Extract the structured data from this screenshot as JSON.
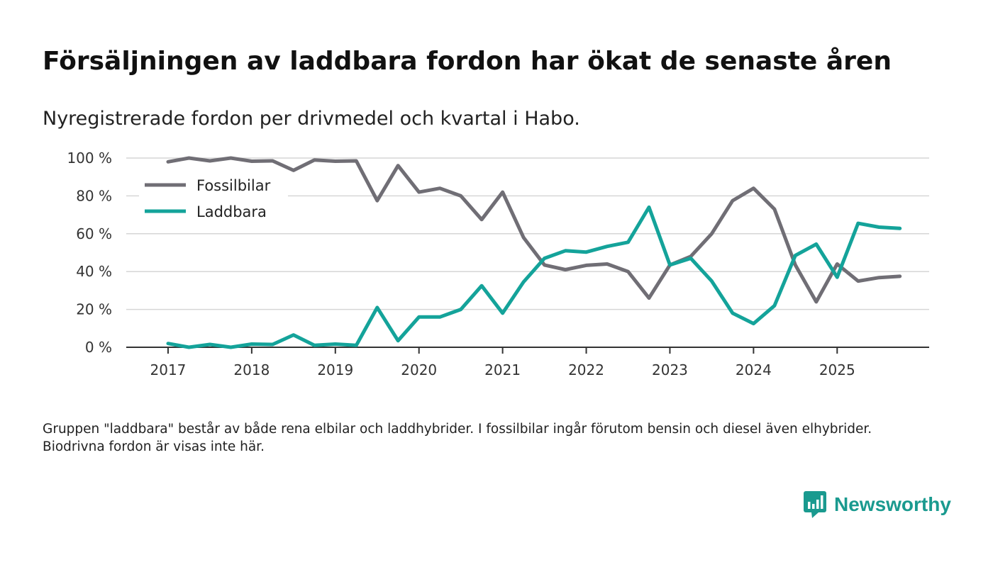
{
  "title": "Försäljningen av laddbara fordon har ökat de senaste åren",
  "subtitle": "Nyregistrerade fordon per drivmedel och kvartal i Habo.",
  "footnote": "Gruppen \"laddbara\" består av både rena elbilar och laddhybrider. I fossilbilar ingår förutom bensin och diesel även elhybrider. Biodrivna fordon är visas inte här.",
  "brand": "Newsworthy",
  "colors": {
    "fossil": "#706e75",
    "laddbara": "#14a39a",
    "grid": "#d6d6d6",
    "axis": "#333333",
    "brand": "#1a9a8f"
  },
  "chart_data": {
    "type": "line",
    "title": "Försäljningen av laddbara fordon har ökat de senaste åren",
    "xlabel": "",
    "ylabel": "",
    "ylim": [
      0,
      100
    ],
    "xlim": [
      2016.5,
      2026.1
    ],
    "yticks": [
      0,
      20,
      40,
      60,
      80,
      100
    ],
    "ytick_labels": [
      "0 %",
      "20 %",
      "40 %",
      "60 %",
      "80 %",
      "100 %"
    ],
    "xticks": [
      2017,
      2018,
      2019,
      2020,
      2021,
      2022,
      2023,
      2024,
      2025
    ],
    "xtick_labels": [
      "2017",
      "2018",
      "2019",
      "2020",
      "2021",
      "2022",
      "2023",
      "2024",
      "2025"
    ],
    "grid": true,
    "legend_position": "top-left",
    "x": [
      2017,
      2017.25,
      2017.5,
      2017.75,
      2018,
      2018.25,
      2018.5,
      2018.75,
      2019,
      2019.25,
      2019.5,
      2019.75,
      2020,
      2020.25,
      2020.5,
      2020.75,
      2021,
      2021.25,
      2021.5,
      2021.75,
      2022,
      2022.25,
      2022.5,
      2022.75,
      2023,
      2023.25,
      2023.5,
      2023.75,
      2024,
      2024.25,
      2024.5,
      2024.75,
      2025,
      2025.25,
      2025.5,
      2025.75
    ],
    "series": [
      {
        "name": "Fossilbilar",
        "color": "#706e75",
        "values": [
          98,
          100,
          98.5,
          100,
          98.3,
          98.5,
          93.5,
          99,
          98.3,
          98.5,
          77.5,
          96,
          82,
          84,
          80,
          67.5,
          82,
          58,
          43.5,
          41,
          43.3,
          44,
          40,
          26,
          43.5,
          48,
          60,
          77.5,
          84,
          73,
          43.5,
          24,
          44,
          35,
          36.8,
          37.5
        ]
      },
      {
        "name": "Laddbara",
        "color": "#14a39a",
        "values": [
          2,
          0,
          1.5,
          0,
          1.7,
          1.5,
          6.5,
          1,
          1.7,
          1,
          21,
          3.5,
          16,
          16,
          20,
          32.5,
          18,
          34.5,
          47,
          51,
          50.3,
          53.3,
          55.5,
          74,
          43.5,
          47,
          35,
          18,
          12.5,
          22,
          48.5,
          54.5,
          37,
          65.5,
          63.5,
          62.8
        ]
      }
    ]
  }
}
